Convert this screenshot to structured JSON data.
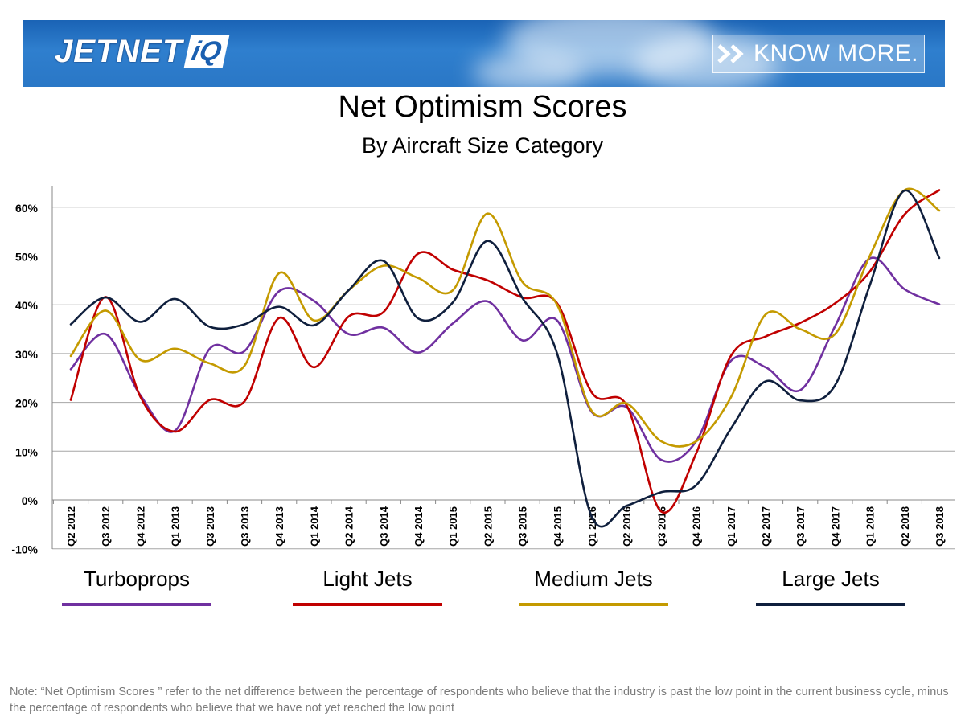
{
  "header": {
    "logo_text": "JETNET",
    "logo_badge": "iQ",
    "cta_label": "KNOW MORE."
  },
  "colors": {
    "banner": "#2a77c6",
    "turboprops": "#7030a0",
    "light_jets": "#c00000",
    "medium_jets": "#c49a00",
    "large_jets": "#0f1f3d"
  },
  "chart_data": {
    "type": "line",
    "title": "Net Optimism Scores",
    "subtitle": "By Aircraft Size Category",
    "xlabel": "",
    "ylabel": "",
    "ylim": [
      -10,
      65
    ],
    "yticks": [
      -10,
      0,
      10,
      20,
      30,
      40,
      50,
      60
    ],
    "ytick_labels": [
      "-10%",
      "0%",
      "10%",
      "20%",
      "30%",
      "40%",
      "50%",
      "60%"
    ],
    "grid": "horizontal",
    "legend_position": "bottom",
    "categories": [
      "Q2 2012",
      "Q3 2012",
      "Q4 2012",
      "Q1 2013",
      "Q3 2013",
      "Q3 2013",
      "Q4 2013",
      "Q1 2014",
      "Q2 2014",
      "Q3 2014",
      "Q4 2014",
      "Q1 2015",
      "Q2 2015",
      "Q3 2015",
      "Q4 2015",
      "Q1 2016",
      "Q2 2016",
      "Q3 2016",
      "Q4 2016",
      "Q1 2017",
      "Q2 2017",
      "Q3 2017",
      "Q4 2017",
      "Q1 2018",
      "Q2 2018",
      "Q3 2018"
    ],
    "series": [
      {
        "name": "Turboprops",
        "color": "#7030a0",
        "values": [
          26.8,
          34,
          21.5,
          14.2,
          31,
          30.5,
          42.8,
          40.8,
          34,
          35.3,
          30.2,
          36.2,
          40.7,
          32.7,
          36.8,
          18,
          19,
          8.2,
          12,
          28.5,
          27.2,
          22.5,
          35.6,
          49.5,
          43.2,
          40.1
        ]
      },
      {
        "name": "Light Jets",
        "color": "#c00000",
        "values": [
          20.5,
          41.6,
          21.2,
          14,
          20.5,
          20.2,
          37.3,
          27.2,
          37.6,
          38.5,
          50.5,
          47.2,
          45,
          41.5,
          40.3,
          22,
          19.4,
          -2.4,
          9.5,
          29.5,
          33.5,
          36.3,
          40.3,
          46.8,
          58.5,
          63.5
        ]
      },
      {
        "name": "Medium Jets",
        "color": "#c49a00",
        "values": [
          29.5,
          38.8,
          28.7,
          31,
          28,
          27.5,
          46.5,
          36.8,
          43,
          48,
          45.5,
          43,
          58.7,
          44.7,
          40,
          18.2,
          19.8,
          12,
          12,
          21,
          38,
          35,
          34,
          50,
          63.5,
          59.3
        ]
      },
      {
        "name": "Large Jets",
        "color": "#0f1f3d",
        "values": [
          36,
          41.5,
          36.5,
          41.2,
          35.5,
          36,
          39.6,
          35.8,
          43,
          49,
          37.2,
          40.5,
          53.1,
          41.4,
          30,
          -3.5,
          -1.2,
          1.6,
          3,
          14.6,
          24.3,
          20.4,
          23.5,
          44,
          63.4,
          49.6
        ]
      }
    ]
  },
  "note": "Note: “Net Optimism Scores ” refer to the net difference between the percentage of respondents who believe that the industry is past the low point in the current business cycle, minus the percentage of respondents who believe that we have not yet reached the low point"
}
